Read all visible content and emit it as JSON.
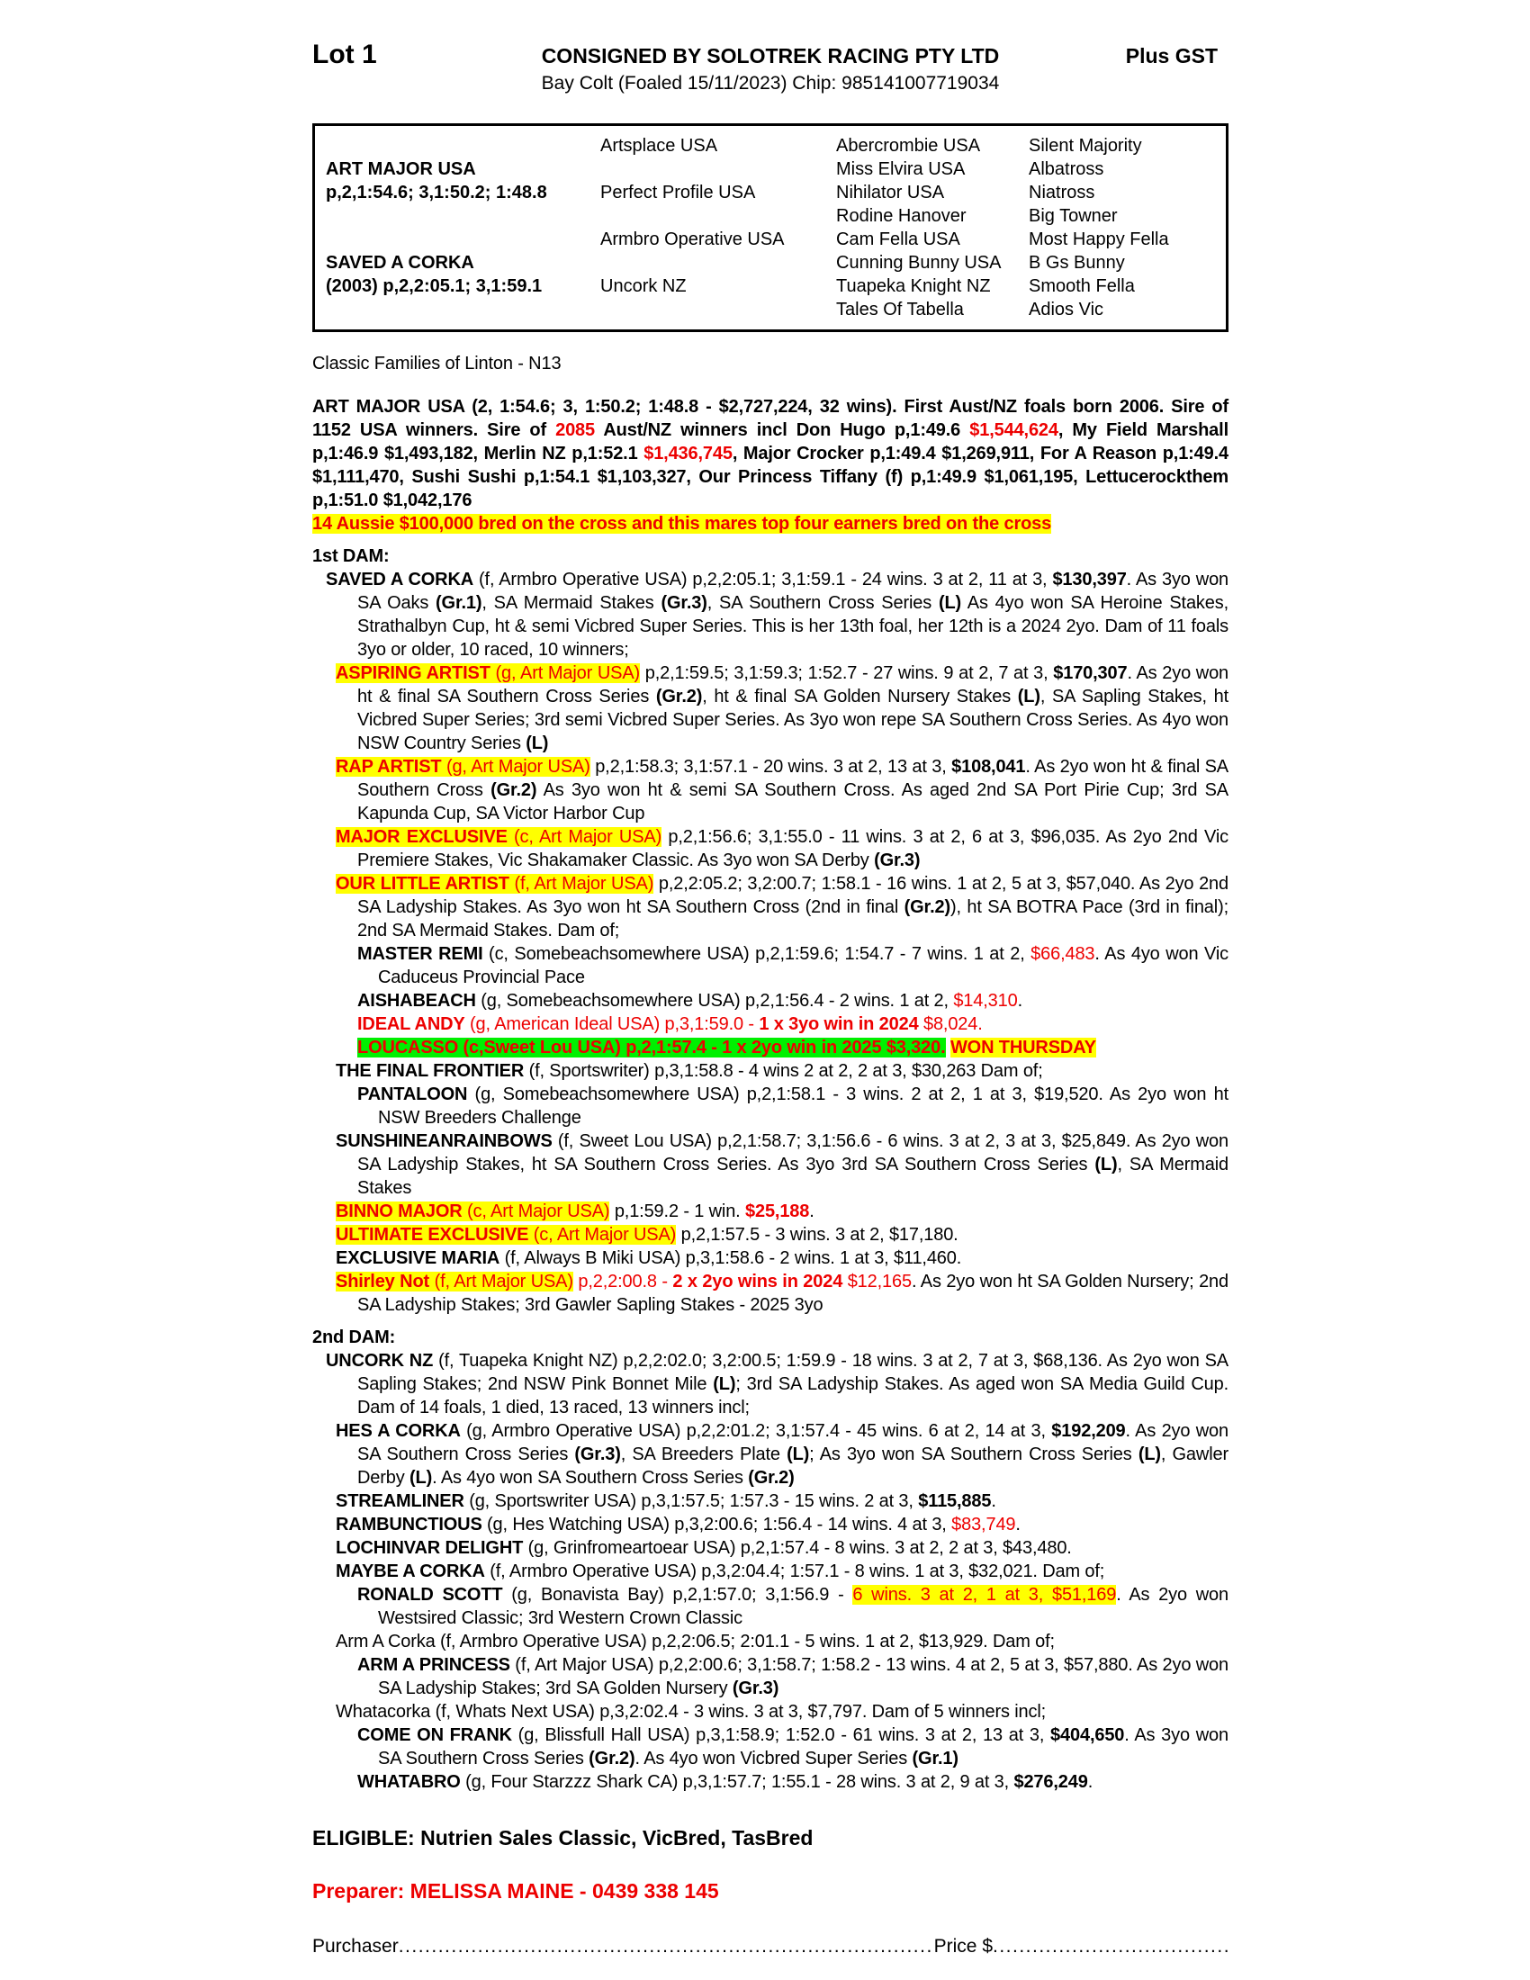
{
  "colors": {
    "red": "#ed0000",
    "yellow": "#ffff00",
    "green": "#00f000"
  },
  "header": {
    "lot": "Lot 1",
    "consignor": "CONSIGNED BY SOLOTREK RACING PTY LTD",
    "gst": "Plus GST",
    "description": "Bay Colt (Foaled 15/11/2023) Chip: 985141007719034"
  },
  "pedigree": {
    "rows": [
      [
        "",
        "Artsplace USA",
        "Abercrombie USA",
        "Silent Majority"
      ],
      [
        "ART MAJOR USA",
        "",
        "Miss Elvira USA",
        "Albatross"
      ],
      [
        "p,2,1:54.6; 3,1:50.2; 1:48.8",
        "Perfect Profile USA",
        "Nihilator USA",
        "Niatross"
      ],
      [
        "",
        "",
        "Rodine Hanover",
        "Big Towner"
      ],
      [
        "",
        "Armbro Operative USA",
        "Cam Fella USA",
        "Most Happy Fella"
      ],
      [
        "SAVED A CORKA",
        "",
        "Cunning Bunny USA",
        "B Gs Bunny"
      ],
      [
        "(2003) p,2,2:05.1; 3,1:59.1",
        "Uncork NZ",
        "Tuapeka Knight NZ",
        "Smooth Fella"
      ],
      [
        "",
        "",
        "Tales Of Tabella",
        "Adios Vic"
      ]
    ]
  },
  "body": [
    {
      "lv": "p",
      "gap": "lg",
      "name": "family-classification",
      "seg": [
        [
          "Classic Families of Linton - N13",
          ""
        ]
      ]
    },
    {
      "lv": "p",
      "j": 1,
      "gap": "lg",
      "name": "sire-record",
      "seg": [
        [
          "ART MAJOR USA (2, 1:54.6; 3, 1:50.2; 1:48.8 - $2,727,224, 32 wins). First Aust/NZ foals born 2006. Sire of 1152 USA winners. Sire of ",
          "b"
        ],
        [
          "2085",
          "br"
        ],
        [
          " Aust/NZ winners incl Don Hugo p,1:49.6 ",
          "b"
        ],
        [
          "$1,544,624",
          "br"
        ],
        [
          ", My Field Marshall p,1:46.9 $1,493,182, Merlin NZ p,1:52.1 ",
          "b"
        ],
        [
          "$1,436,745",
          "br"
        ],
        [
          ", Major Crocker p,1:49.4 $1,269,911, For A Reason p,1:49.4 $1,111,470, Sushi Sushi p,1:54.1 $1,103,327, Our Princess Tiffany (f) p,1:49.9 $1,061,195, Lettucerockthem p,1:51.0 $1,042,176",
          "b"
        ]
      ]
    },
    {
      "lv": "p",
      "name": "cross-note",
      "seg": [
        [
          "14 Aussie $100,000 bred on the cross and this mares top four earners bred on the cross",
          "bry"
        ]
      ]
    },
    {
      "lv": "h",
      "gap": "sm",
      "name": "first-dam-heading",
      "seg": [
        [
          "1st DAM:",
          ""
        ]
      ]
    },
    {
      "lv": "d",
      "j": 1,
      "seg": [
        [
          "SAVED A CORKA",
          "b"
        ],
        [
          " (f, Armbro Operative USA) p,2,2:05.1; 3,1:59.1 - 24 wins. 3 at 2, 11 at 3, ",
          ""
        ],
        [
          "$130,397",
          "b"
        ],
        [
          ". As 3yo won SA Oaks ",
          ""
        ],
        [
          "(Gr.1)",
          "b"
        ],
        [
          ", SA Mermaid Stakes ",
          ""
        ],
        [
          "(Gr.3)",
          "b"
        ],
        [
          ", SA Southern Cross Series ",
          ""
        ],
        [
          "(L)",
          "b"
        ],
        [
          " As 4yo won SA Heroine Stakes, Strathalbyn Cup, ht & semi Vicbred Super Series. This is her 13th foal, her 12th is a 2024 2yo. Dam of 11 foals 3yo or older, 10 raced, 10 winners;",
          ""
        ]
      ]
    },
    {
      "lv": "c",
      "j": 1,
      "seg": [
        [
          "ASPIRING ARTIST ",
          "bry"
        ],
        [
          "(g, Art Major USA)",
          "ry"
        ],
        [
          " p,2,1:59.5; 3,1:59.3; 1:52.7 - 27 wins. 9 at 2, 7 at 3, ",
          ""
        ],
        [
          "$170,307",
          "b"
        ],
        [
          ". As 2yo won ht & final SA Southern Cross Series ",
          ""
        ],
        [
          "(Gr.2)",
          "b"
        ],
        [
          ", ht & final SA Golden Nursery Stakes ",
          ""
        ],
        [
          "(L)",
          "b"
        ],
        [
          ", SA Sapling Stakes, ht Vicbred Super Series; 3rd semi Vicbred Super Series. As 3yo won repe SA Southern Cross Series. As 4yo won NSW Country Series ",
          ""
        ],
        [
          "(L)",
          "b"
        ]
      ]
    },
    {
      "lv": "c",
      "j": 1,
      "seg": [
        [
          "RAP ARTIST ",
          "bry"
        ],
        [
          "(g, Art Major USA)",
          "ry"
        ],
        [
          " p,2,1:58.3; 3,1:57.1 - 20 wins. 3 at 2, 13 at 3, ",
          ""
        ],
        [
          "$108,041",
          "b"
        ],
        [
          ". As 2yo won ht & final SA Southern Cross ",
          ""
        ],
        [
          "(Gr.2)",
          "b"
        ],
        [
          " As 3yo won ht & semi SA Southern Cross. As aged 2nd SA Port Pirie Cup; 3rd SA Kapunda Cup, SA Victor Harbor Cup",
          ""
        ]
      ]
    },
    {
      "lv": "c",
      "j": 1,
      "seg": [
        [
          "MAJOR EXCLUSIVE ",
          "bry"
        ],
        [
          "(c, Art Major USA)",
          "ry"
        ],
        [
          " p,2,1:56.6; 3,1:55.0 - 11 wins. 3 at 2, 6 at 3, $96,035. As 2yo 2nd Vic Premiere Stakes, Vic Shakamaker Classic. As 3yo won SA Derby ",
          ""
        ],
        [
          "(Gr.3)",
          "b"
        ]
      ]
    },
    {
      "lv": "c",
      "j": 1,
      "seg": [
        [
          "OUR LITTLE ARTIST ",
          "bry"
        ],
        [
          "(f, Art Major USA)",
          "ry"
        ],
        [
          " p,2,2:05.2; 3,2:00.7; 1:58.1 - 16 wins. 1 at 2, 5 at 3, $57,040. As 2yo 2nd SA Ladyship Stakes. As 3yo won ht SA Southern Cross (2nd in final ",
          ""
        ],
        [
          "(Gr.2)",
          "b"
        ],
        [
          "), ht SA BOTRA Pace (3rd in final); 2nd SA Mermaid Stakes. Dam of;",
          ""
        ]
      ]
    },
    {
      "lv": "g",
      "j": 1,
      "seg": [
        [
          "MASTER REMI",
          "b"
        ],
        [
          " (c, Somebeachsomewhere USA) p,2,1:59.6; 1:54.7 - 7 wins. 1 at 2, ",
          ""
        ],
        [
          "$66,483",
          "r"
        ],
        [
          ". As 4yo won Vic Caduceus Provincial Pace",
          ""
        ]
      ]
    },
    {
      "lv": "g",
      "seg": [
        [
          "AISHABEACH",
          "b"
        ],
        [
          " (g, Somebeachsomewhere USA) p,2,1:56.4 - 2 wins. 1 at 2, ",
          ""
        ],
        [
          "$14,310",
          "r"
        ],
        [
          ".",
          ""
        ]
      ]
    },
    {
      "lv": "g",
      "seg": [
        [
          "IDEAL ANDY",
          "br"
        ],
        [
          " (g, American Ideal USA) p,3,1:59.0 - ",
          "r"
        ],
        [
          "1 x 3yo win in 2024",
          "br"
        ],
        [
          " $8,024.",
          "r"
        ]
      ]
    },
    {
      "lv": "g",
      "seg": [
        [
          "LOUCASSO (c,Sweet Lou USA) p,2,1:57.4 - 1 x 2yo win in 2025 $3,320.",
          "brg"
        ],
        [
          " ",
          ""
        ],
        [
          "WON THURSDAY",
          "bry"
        ]
      ]
    },
    {
      "lv": "c",
      "seg": [
        [
          "THE FINAL FRONTIER",
          "b"
        ],
        [
          " (f, Sportswriter) p,3,1:58.8 - 4 wins 2 at 2, 2 at 3, $30,263 Dam of;",
          ""
        ]
      ]
    },
    {
      "lv": "g",
      "j": 1,
      "seg": [
        [
          "PANTALOON",
          "b"
        ],
        [
          " (g, Somebeachsomewhere USA) p,2,1:58.1 - 3 wins. 2 at 2, 1 at 3, $19,520. As 2yo won ht NSW Breeders Challenge",
          ""
        ]
      ]
    },
    {
      "lv": "c",
      "j": 1,
      "seg": [
        [
          "SUNSHINEANRAINBOWS",
          "b"
        ],
        [
          " (f, Sweet Lou USA) p,2,1:58.7; 3,1:56.6 - 6 wins. 3 at 2, 3 at 3, $25,849. As 2yo won SA Ladyship Stakes, ht SA Southern Cross Series. As 3yo 3rd SA Southern Cross Series ",
          ""
        ],
        [
          "(L)",
          "b"
        ],
        [
          ", SA Mermaid Stakes",
          ""
        ]
      ]
    },
    {
      "lv": "c",
      "seg": [
        [
          "BINNO MAJOR ",
          "bry"
        ],
        [
          "(c, Art Major USA)",
          "ry"
        ],
        [
          " p,1:59.2 - 1 win. ",
          ""
        ],
        [
          "$25,188",
          "br"
        ],
        [
          ".",
          ""
        ]
      ]
    },
    {
      "lv": "c",
      "seg": [
        [
          "ULTIMATE EXCLUSIVE ",
          "bry"
        ],
        [
          "(c, Art Major USA)",
          "ry"
        ],
        [
          " p,2,1:57.5 - 3 wins. 3 at 2, $17,180.",
          ""
        ]
      ]
    },
    {
      "lv": "c",
      "seg": [
        [
          "EXCLUSIVE MARIA",
          "b"
        ],
        [
          " (f, Always B Miki USA) p,3,1:58.6 - 2 wins. 1 at 3, $11,460.",
          ""
        ]
      ]
    },
    {
      "lv": "c",
      "j": 1,
      "seg": [
        [
          "Shirley Not ",
          "bry"
        ],
        [
          "(f, Art Major USA)",
          "ry"
        ],
        [
          " ",
          ""
        ],
        [
          "p,2,2:00.8 - ",
          "r"
        ],
        [
          "2 x 2yo wins in 2024",
          "br"
        ],
        [
          " $12,165",
          "r"
        ],
        [
          ". As 2yo won ht SA Golden Nursery; 2nd SA Ladyship Stakes; 3rd Gawler Sapling Stakes - 2025 3yo",
          ""
        ]
      ]
    },
    {
      "lv": "h",
      "gap": "sm",
      "name": "second-dam-heading",
      "seg": [
        [
          "2nd DAM:",
          ""
        ]
      ]
    },
    {
      "lv": "d",
      "j": 1,
      "seg": [
        [
          "UNCORK NZ",
          "b"
        ],
        [
          " (f, Tuapeka Knight NZ) p,2,2:02.0; 3,2:00.5; 1:59.9 - 18 wins. 3 at 2, 7 at 3, $68,136. As 2yo won SA Sapling Stakes; 2nd NSW Pink Bonnet Mile ",
          ""
        ],
        [
          "(L)",
          "b"
        ],
        [
          "; 3rd SA Ladyship Stakes. As aged won SA Media Guild Cup. Dam of 14 foals, 1 died, 13 raced, 13 winners incl;",
          ""
        ]
      ]
    },
    {
      "lv": "c",
      "j": 1,
      "seg": [
        [
          "HES A CORKA",
          "b"
        ],
        [
          " (g, Armbro Operative USA) p,2,2:01.2; 3,1:57.4 - 45 wins. 6 at 2, 14 at 3, ",
          ""
        ],
        [
          "$192,209",
          "b"
        ],
        [
          ". As 2yo won SA Southern Cross Series ",
          ""
        ],
        [
          "(Gr.3)",
          "b"
        ],
        [
          ", SA Breeders Plate ",
          ""
        ],
        [
          "(L)",
          "b"
        ],
        [
          "; As 3yo won SA Southern Cross Series ",
          ""
        ],
        [
          "(L)",
          "b"
        ],
        [
          ", Gawler Derby ",
          ""
        ],
        [
          "(L)",
          "b"
        ],
        [
          ". As 4yo won SA Southern Cross Series ",
          ""
        ],
        [
          "(Gr.2)",
          "b"
        ]
      ]
    },
    {
      "lv": "c",
      "seg": [
        [
          "STREAMLINER",
          "b"
        ],
        [
          " (g, Sportswriter USA) p,3,1:57.5; 1:57.3 - 15 wins. 2 at 3, ",
          ""
        ],
        [
          "$115,885",
          "b"
        ],
        [
          ".",
          ""
        ]
      ]
    },
    {
      "lv": "c",
      "seg": [
        [
          "RAMBUNCTIOUS",
          "b"
        ],
        [
          " (g, Hes Watching USA) p,3,2:00.6; 1:56.4 - 14 wins. 4 at 3, ",
          ""
        ],
        [
          "$83,749",
          "r"
        ],
        [
          ".",
          ""
        ]
      ]
    },
    {
      "lv": "c",
      "seg": [
        [
          "LOCHINVAR DELIGHT",
          "b"
        ],
        [
          " (g, Grinfromeartoear USA) p,2,1:57.4 - 8 wins. 3 at 2, 2 at 3, $43,480.",
          ""
        ]
      ]
    },
    {
      "lv": "c",
      "seg": [
        [
          "MAYBE A CORKA",
          "b"
        ],
        [
          " (f, Armbro Operative USA) p,3,2:04.4; 1:57.1 - 8 wins. 1 at 3, $32,021. Dam of;",
          ""
        ]
      ]
    },
    {
      "lv": "g",
      "j": 1,
      "seg": [
        [
          "RONALD SCOTT",
          "b"
        ],
        [
          " (g, Bonavista Bay) p,2,1:57.0; 3,1:56.9 - ",
          ""
        ],
        [
          "6 wins. 3 at 2, 1 at 3, $51,169",
          "ry"
        ],
        [
          ". As 2yo won Westsired Classic; 3rd Western Crown Classic",
          ""
        ]
      ]
    },
    {
      "lv": "c",
      "seg": [
        [
          "Arm A Corka (f, Armbro Operative USA) p,2,2:06.5; 2:01.1 - 5 wins. 1 at 2, $13,929. Dam of;",
          ""
        ]
      ]
    },
    {
      "lv": "g",
      "j": 1,
      "seg": [
        [
          "ARM A PRINCESS",
          "b"
        ],
        [
          " (f, Art Major USA) p,2,2:00.6; 3,1:58.7; 1:58.2 - 13 wins. 4 at 2, 5 at 3, $57,880. As 2yo won SA Ladyship Stakes; 3rd SA Golden Nursery ",
          ""
        ],
        [
          "(Gr.3)",
          "b"
        ]
      ]
    },
    {
      "lv": "c",
      "seg": [
        [
          "Whatacorka (f, Whats Next USA) p,3,2:02.4 - 3 wins. 3 at 3, $7,797. Dam of 5 winners incl;",
          ""
        ]
      ]
    },
    {
      "lv": "g",
      "j": 1,
      "seg": [
        [
          "COME ON FRANK",
          "b"
        ],
        [
          " (g, Blissfull Hall USA) p,3,1:58.9; 1:52.0 - 61 wins. 3 at 2, 13 at 3, ",
          ""
        ],
        [
          "$404,650",
          "b"
        ],
        [
          ". As 3yo won SA Southern Cross Series ",
          ""
        ],
        [
          "(Gr.2)",
          "b"
        ],
        [
          ". As 4yo won Vicbred Super Series ",
          ""
        ],
        [
          "(Gr.1)",
          "b"
        ]
      ]
    },
    {
      "lv": "g",
      "seg": [
        [
          "WHATABRO",
          "b"
        ],
        [
          " (g, Four Starzzz Shark CA) p,3,1:57.7; 1:55.1 - 28 wins. 3 at 2, 9 at 3, ",
          ""
        ],
        [
          "$276,249",
          "b"
        ],
        [
          ".",
          ""
        ]
      ]
    }
  ],
  "footer": {
    "eligible": "ELIGIBLE: Nutrien Sales Classic, VicBred, TasBred",
    "preparer": "Preparer: MELISSA MAINE - 0439 338 145",
    "purchaser_label": "Purchaser",
    "purchaser_dots": "........................................................................................................................................",
    "price_label": "Price $",
    "price_dots": "........................................................................"
  }
}
